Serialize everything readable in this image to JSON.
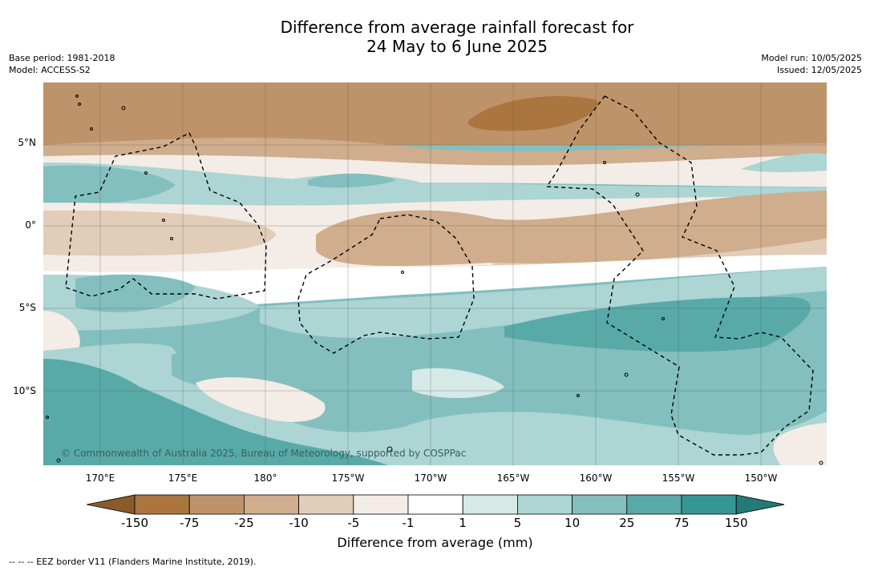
{
  "title_line1": "Difference from average rainfall forecast for",
  "title_line2": "24 May to 6 June 2025",
  "meta": {
    "base_period": "Base period: 1981-2018",
    "model": "Model: ACCESS-S2",
    "model_run": "Model run: 10/05/2025",
    "issued": "Issued: 12/05/2025"
  },
  "lat_labels": [
    "5°N",
    "0°",
    "5°S",
    "10°S"
  ],
  "lon_labels": [
    "170°E",
    "175°E",
    "180°",
    "175°W",
    "170°W",
    "165°W",
    "160°W",
    "155°W",
    "150°W"
  ],
  "copyright": "© Commonwealth of Australia 2025, Bureau of Meteorology, supported by COSPPac",
  "colorbar": {
    "ticks": [
      "-150",
      "-75",
      "-25",
      "-10",
      "-5",
      "-1",
      "1",
      "5",
      "10",
      "25",
      "75",
      "150"
    ],
    "colors": [
      "#ab7540",
      "#bf9369",
      "#cfad8d",
      "#e2cdb9",
      "#f4ece6",
      "#ffffff",
      "#d5e9e7",
      "#acd5d3",
      "#83bfbe",
      "#58aaa9",
      "#359693"
    ],
    "end_low": "#8b5a2b",
    "end_high": "#237a77",
    "title": "Difference from average (mm)"
  },
  "footnote": "-- -- -- EEZ border V11 (Flanders Marine Institute, 2019)."
}
